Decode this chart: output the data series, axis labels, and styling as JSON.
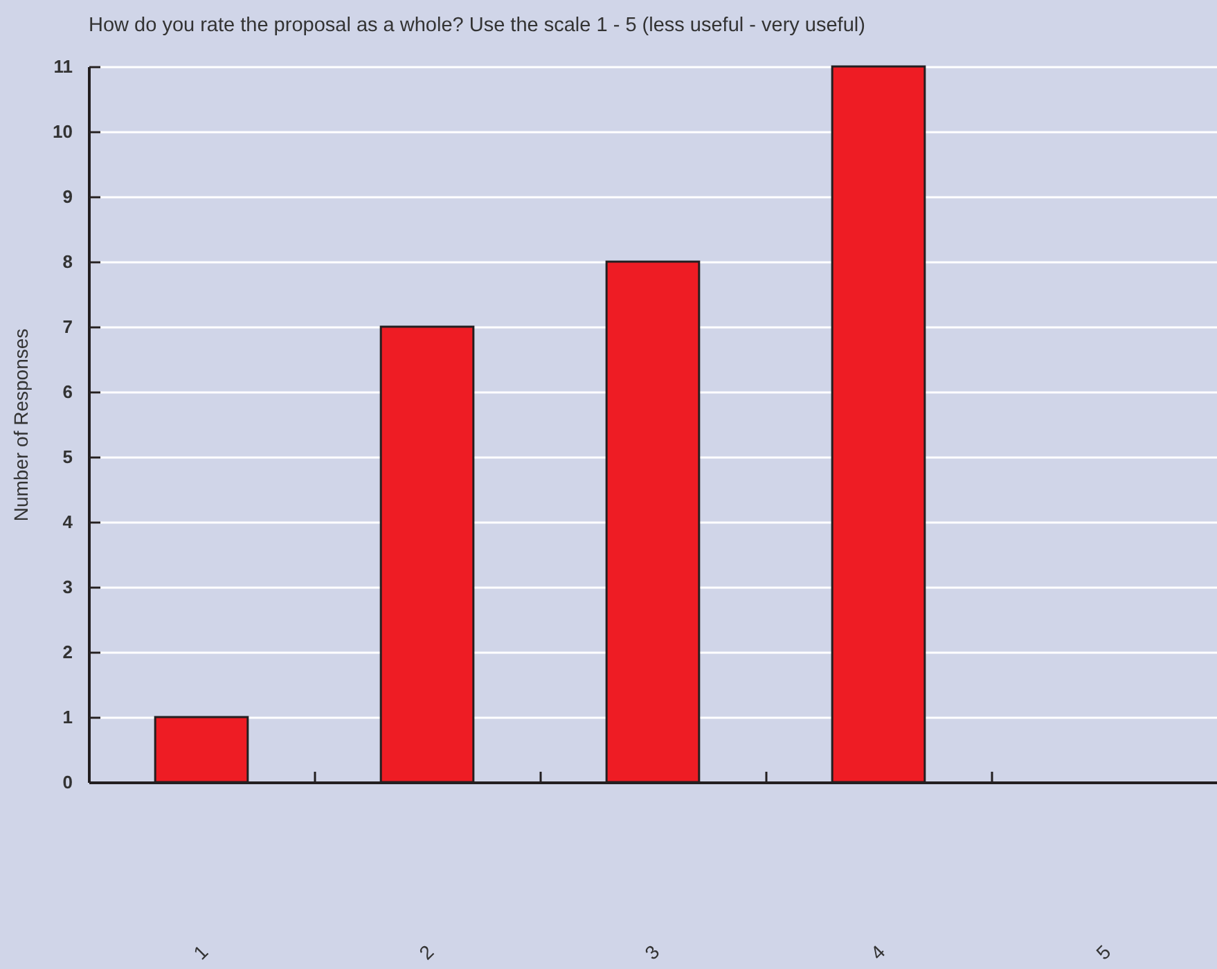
{
  "chart_data": {
    "type": "bar",
    "title": "How do you rate the proposal as a whole? Use the scale 1 - 5 (less useful - very useful)",
    "ylabel": "Number of Responses",
    "categories": [
      "1",
      "2",
      "3",
      "4",
      "5"
    ],
    "values": [
      1,
      7,
      8,
      11,
      0
    ],
    "color": "#ee1c24",
    "ylim": [
      0,
      11
    ],
    "yticks": [
      0,
      1,
      2,
      3,
      4,
      5,
      6,
      7,
      8,
      9,
      10,
      11
    ],
    "grid": "y"
  }
}
